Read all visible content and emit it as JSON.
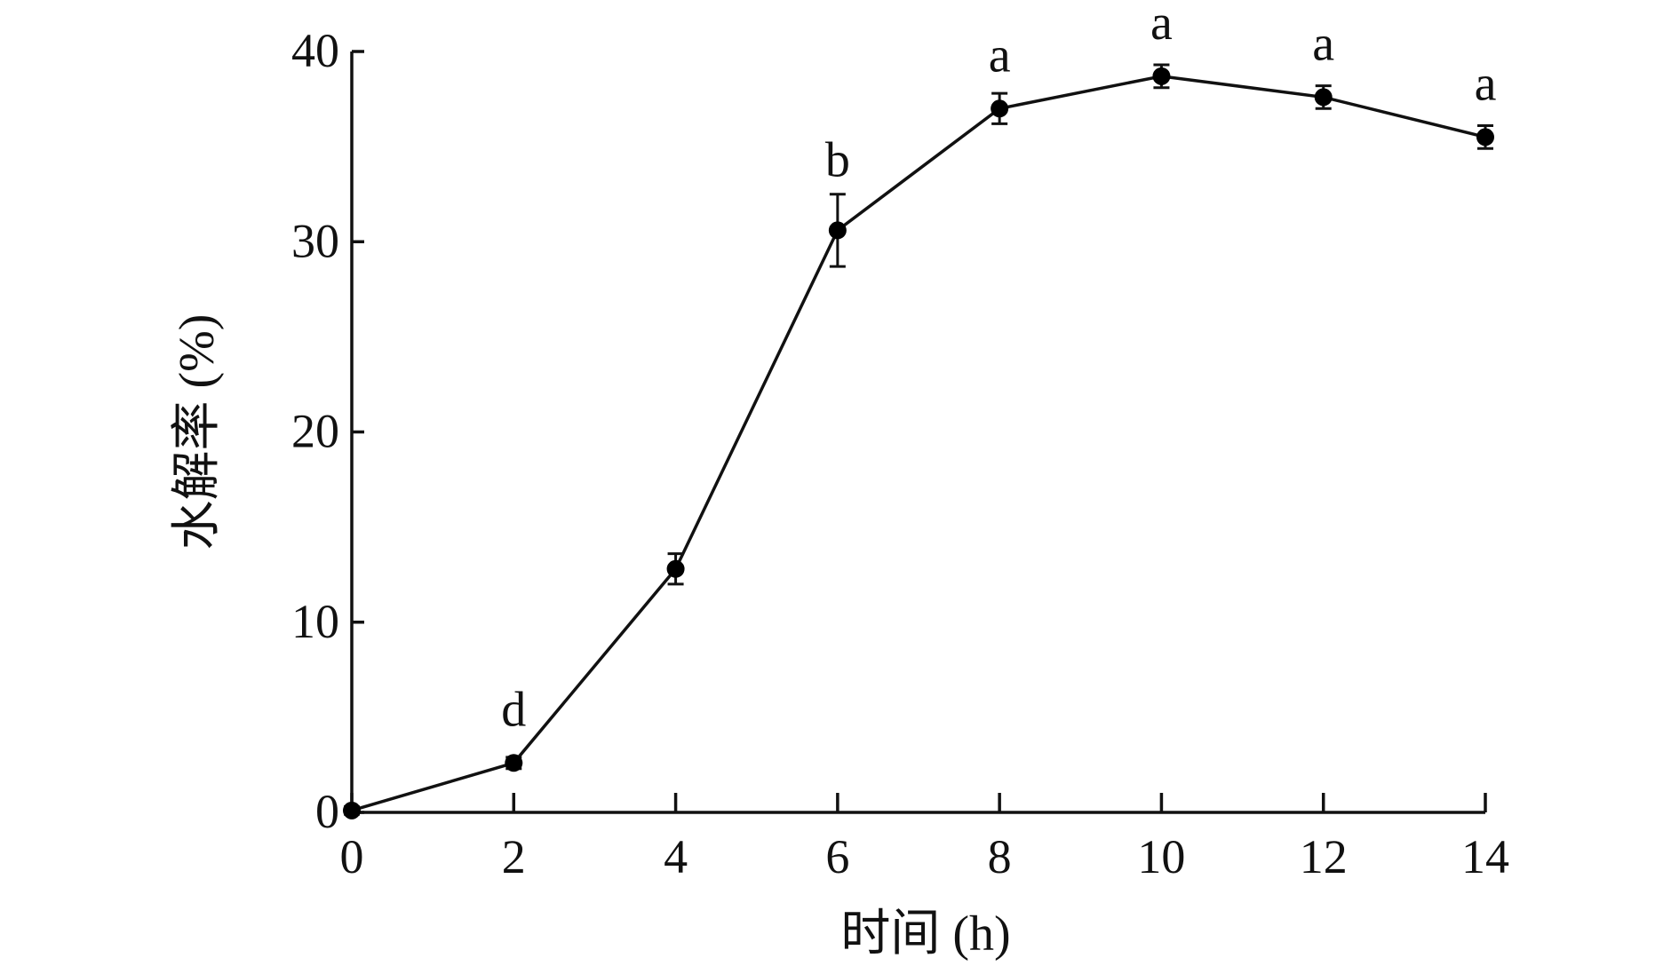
{
  "chart_data": {
    "type": "line",
    "xlabel": "时间 (h)",
    "ylabel": "水解率 (%)",
    "xlim": [
      0,
      14
    ],
    "ylim": [
      0,
      40
    ],
    "x_ticks": [
      "0",
      "2",
      "4",
      "6",
      "8",
      "10",
      "12",
      "14"
    ],
    "y_ticks": [
      "0",
      "10",
      "20",
      "30",
      "40"
    ],
    "grid": false,
    "legend": "none",
    "series": [
      {
        "x": [
          0,
          2,
          4,
          6,
          8,
          10,
          12,
          14
        ],
        "y": [
          0.1,
          2.6,
          12.8,
          30.6,
          37.0,
          38.7,
          37.6,
          35.5
        ],
        "error": [
          0.2,
          0.3,
          0.8,
          1.9,
          0.8,
          0.6,
          0.6,
          0.6
        ],
        "labels": [
          "",
          "d",
          "",
          "b",
          "a",
          "a",
          "a",
          "a"
        ]
      }
    ],
    "colors": {
      "line": "#111111",
      "marker": "#000000"
    }
  }
}
